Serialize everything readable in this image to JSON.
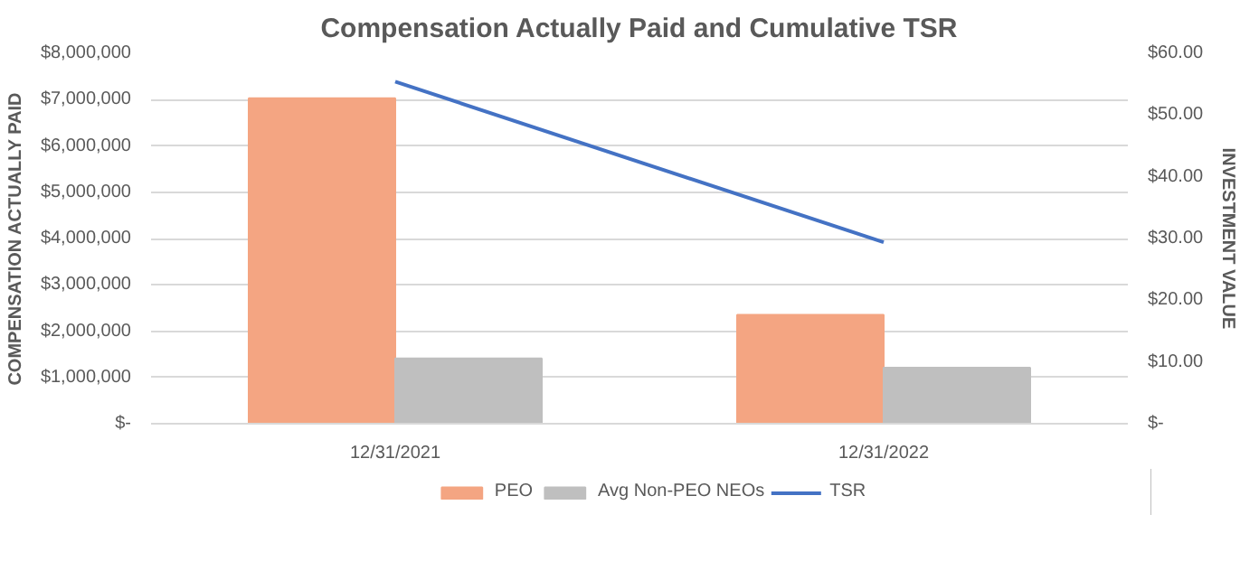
{
  "chart_data": {
    "type": "bar",
    "title": "Compensation Actually Paid and Cumulative TSR",
    "ylabel": "COMPENSATION ACTUALLY PAID",
    "y2label": "INVESTMENT VALUE",
    "categories": [
      "12/31/2021",
      "12/31/2022"
    ],
    "series": [
      {
        "name": "PEO",
        "color": "#f4a582",
        "values": [
          7030000,
          2350000
        ]
      },
      {
        "name": "Avg Non-PEO NEOs",
        "color": "#bfbfbf",
        "values": [
          1410000,
          1210000
        ]
      },
      {
        "name": "TSR",
        "type": "line",
        "axis": "y2",
        "color": "#4472c4",
        "values": [
          55.4,
          29.4
        ]
      }
    ],
    "ylim": [
      0,
      8000000
    ],
    "yticks": [
      {
        "value": 0,
        "label": "$-"
      },
      {
        "value": 1000000,
        "label": "$1,000,000"
      },
      {
        "value": 2000000,
        "label": "$2,000,000"
      },
      {
        "value": 3000000,
        "label": "$3,000,000"
      },
      {
        "value": 4000000,
        "label": "$4,000,000"
      },
      {
        "value": 5000000,
        "label": "$5,000,000"
      },
      {
        "value": 6000000,
        "label": "$6,000,000"
      },
      {
        "value": 7000000,
        "label": "$7,000,000"
      },
      {
        "value": 8000000,
        "label": "$8,000,000"
      }
    ],
    "y2lim": [
      0,
      60
    ],
    "y2ticks": [
      {
        "value": 0,
        "label": "$-"
      },
      {
        "value": 10,
        "label": "$10.00"
      },
      {
        "value": 20,
        "label": "$20.00"
      },
      {
        "value": 30,
        "label": "$30.00"
      },
      {
        "value": 40,
        "label": "$40.00"
      },
      {
        "value": 50,
        "label": "$50.00"
      },
      {
        "value": 60,
        "label": "$60.00"
      }
    ],
    "grid": "y",
    "legend": "bottom"
  }
}
